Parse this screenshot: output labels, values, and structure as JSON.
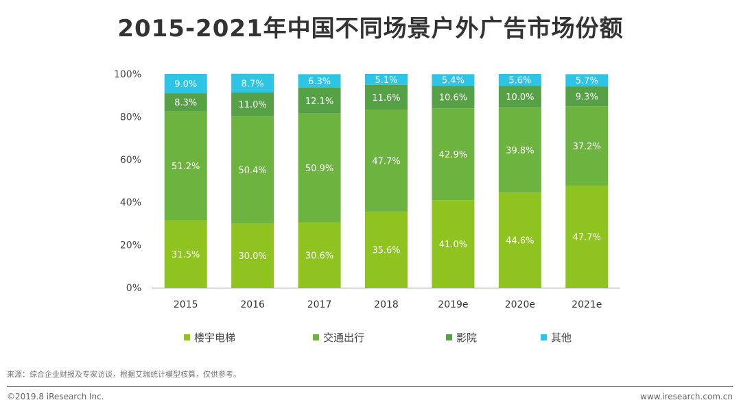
{
  "header": {
    "title": "2015-2021年中国不同场景户外广告市场份额"
  },
  "chart_data": {
    "type": "bar",
    "stacked": true,
    "categories": [
      "2015",
      "2016",
      "2017",
      "2018",
      "2019e",
      "2020e",
      "2021e"
    ],
    "series": [
      {
        "name": "楼宇电梯",
        "color": "#8fc31f",
        "values": [
          31.5,
          30.0,
          30.6,
          35.6,
          41.0,
          44.6,
          47.7
        ]
      },
      {
        "name": "交通出行",
        "color": "#6db33f",
        "values": [
          51.2,
          50.4,
          50.9,
          47.7,
          42.9,
          39.8,
          37.2
        ]
      },
      {
        "name": "影院",
        "color": "#56a046",
        "values": [
          8.3,
          11.0,
          12.1,
          11.6,
          10.6,
          10.0,
          9.3
        ]
      },
      {
        "name": "其他",
        "color": "#2ec4e6",
        "values": [
          9.0,
          8.7,
          6.3,
          5.1,
          5.4,
          5.6,
          5.7
        ]
      }
    ],
    "y_ticks": [
      "0%",
      "20%",
      "40%",
      "60%",
      "80%",
      "100%"
    ],
    "ylim": [
      0,
      100
    ],
    "grid": false,
    "legend_position": "bottom"
  },
  "footer": {
    "source": "来源：综合企业财报及专家访谈，根据艾瑞统计模型核算，仅供参考。",
    "copyright": "©2019.8 iResearch Inc.",
    "site": "www.iresearch.com.cn"
  }
}
